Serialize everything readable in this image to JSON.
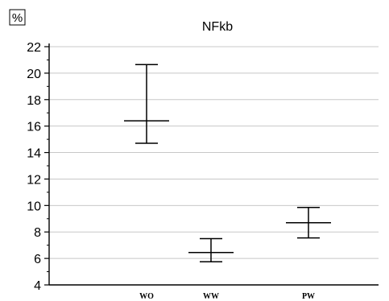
{
  "chart_data": {
    "type": "error-bar",
    "title": "NFkb",
    "unit_label": "%",
    "ylim": [
      4,
      22
    ],
    "yticks": [
      4,
      6,
      8,
      10,
      12,
      14,
      16,
      18,
      20,
      22
    ],
    "grid": true,
    "categories": [
      "WO",
      "WW",
      "PW"
    ],
    "series": [
      {
        "mean": [
          16.4,
          6.45,
          8.7
        ],
        "upper": [
          20.65,
          7.5,
          9.85
        ],
        "lower": [
          14.7,
          5.75,
          7.55
        ]
      }
    ]
  }
}
